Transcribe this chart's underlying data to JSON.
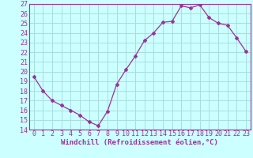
{
  "x": [
    0,
    1,
    2,
    3,
    4,
    5,
    6,
    7,
    8,
    9,
    10,
    11,
    12,
    13,
    14,
    15,
    16,
    17,
    18,
    19,
    20,
    21,
    22,
    23
  ],
  "y": [
    19.5,
    18.0,
    17.0,
    16.5,
    16.0,
    15.5,
    14.8,
    14.4,
    15.9,
    18.7,
    20.2,
    21.6,
    23.2,
    24.0,
    25.1,
    25.2,
    26.8,
    26.6,
    26.9,
    25.6,
    25.0,
    24.8,
    23.5,
    22.1
  ],
  "color": "#993399",
  "bg_color": "#ccffff",
  "grid_color": "#aadddd",
  "xlabel": "Windchill (Refroidissement éolien,°C)",
  "ylim": [
    14,
    27
  ],
  "xlim": [
    -0.5,
    23.5
  ],
  "yticks": [
    14,
    15,
    16,
    17,
    18,
    19,
    20,
    21,
    22,
    23,
    24,
    25,
    26,
    27
  ],
  "xticks": [
    0,
    1,
    2,
    3,
    4,
    5,
    6,
    7,
    8,
    9,
    10,
    11,
    12,
    13,
    14,
    15,
    16,
    17,
    18,
    19,
    20,
    21,
    22,
    23
  ],
  "xlabel_fontsize": 6.5,
  "tick_fontsize": 6.0,
  "marker": "D",
  "markersize": 2.0,
  "linewidth": 0.9
}
